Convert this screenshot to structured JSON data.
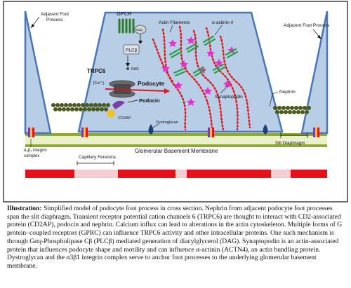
{
  "diagram": {
    "labels": {
      "gpcr": "GPCR",
      "galpha_q": "Gαq",
      "plcb": "PLCβ",
      "dag": "DAG",
      "trpc6": "TRPC6",
      "calcium": "[Ca²⁺]",
      "podocin": "Podocin",
      "podocyte": "Podocyte",
      "cd2ap": "CD2AP",
      "actin_filaments": "Actin Filaments",
      "alpha_actinin_4": "α-actinin 4",
      "synaptopodin": "Synaptopodin",
      "nephrin": "Nephrin",
      "dystroglycan": "Dystroglycan",
      "adjacent_left": [
        "Adjacent Foot",
        "Process"
      ],
      "adjacent_right": "Adjacent Foot Process",
      "integrin": [
        "α₃β₁ integrin",
        "complex"
      ],
      "gbm": "Glomerular Basement Membrane",
      "slit_diaphragm": "Slit Diaphragm",
      "capillary_fenestra": "Capillary Fenestra"
    },
    "colors": {
      "foot_process": "#b8cde6",
      "membrane_outline": "#4a77b4",
      "gbm_band": "#8dab2c",
      "endothelium": "#e8111a",
      "actin": "#e0141b",
      "synaptopodin": "#e033c8",
      "alpha_actinin": "#2aa04a",
      "nephrin": "#4a5a1e",
      "dystroglycan": "#1f3f7a",
      "cd2ap": "#f2c418",
      "podocin": "#7a3fa0"
    }
  },
  "caption": {
    "title": "Illustration:",
    "text": " Simplified model of podocyte foot process in cross section. Nephrin from adjacent podocyte foot processes span the slit diaphragm. Transient receptor potential cation channels 6 (TRPC6) are thought to interact with CD2-associated protein (CD2AP), podocin and nephrin. Calcium influx can lead to alterations in the actin cytoskeleton. Multiple forms of G protein–coupled receptors (GPRC) can influence TRPC6 activity and other intracellular proteins. One such mechanism is through Gαq-Phospholipase Cβ (PLCβ) mediated generation of diacylglycerol (DAG). Synaptopodin is an actin-associated protein that influences podocyte shape and motility and can influence α-actinin (ACTN4), an actin bundling protein. Dystroglycan and the α3β1 integrin complex serve to anchor foot processes to the underlying glomerular basement membrane."
  }
}
